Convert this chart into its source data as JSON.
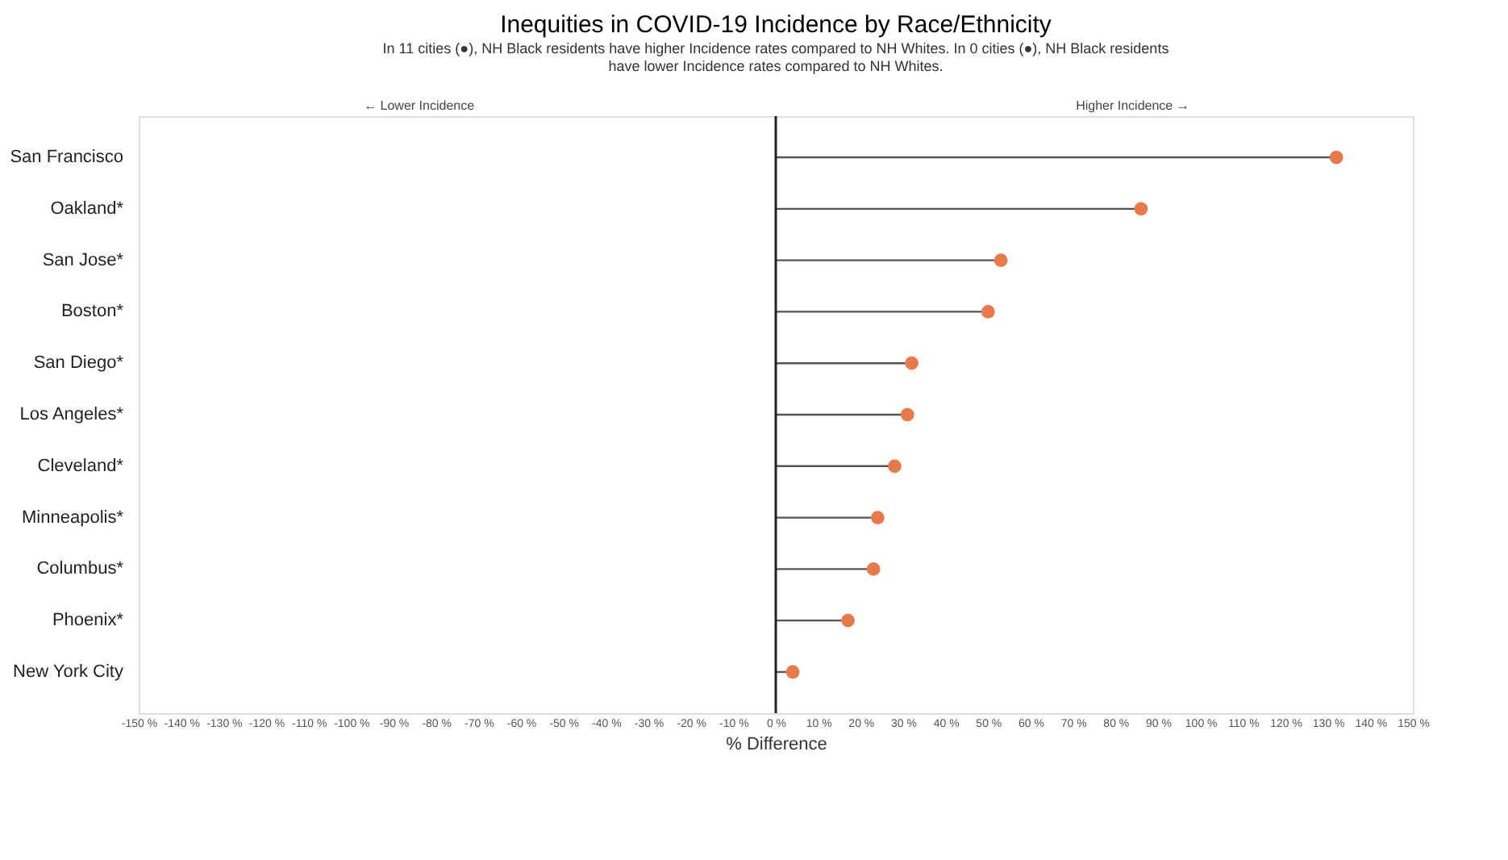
{
  "chart_data": {
    "type": "lollipop",
    "orientation": "horizontal",
    "title": "Inequities in COVID-19 Incidence by Race/Ethnicity",
    "subtitle": "In 11 cities (●), NH Black residents have higher Incidence rates compared to NH Whites. In 0 cities (●), NH Black residents have lower Incidence rates compared to NH Whites.",
    "xlabel": "% Difference",
    "categories": [
      "San Francisco",
      "Oakland*",
      "San Jose*",
      "Boston*",
      "San Diego*",
      "Los Angeles*",
      "Cleveland*",
      "Minneapolis*",
      "Columbus*",
      "Phoenix*",
      "New York City"
    ],
    "series": [
      {
        "color": "#e8794a",
        "values": [
          132,
          86,
          53,
          50,
          32,
          31,
          28,
          24,
          23,
          17,
          4
        ]
      }
    ],
    "xlim": [
      -150,
      150
    ],
    "xticks": [
      {
        "value": -150,
        "label": "-150 %"
      },
      {
        "value": -140,
        "label": "-140 %"
      },
      {
        "value": -130,
        "label": "-130 %"
      },
      {
        "value": -120,
        "label": "-120 %"
      },
      {
        "value": -110,
        "label": "-110 %"
      },
      {
        "value": -100,
        "label": "-100 %"
      },
      {
        "value": -90,
        "label": "-90 %"
      },
      {
        "value": -80,
        "label": "-80 %"
      },
      {
        "value": -70,
        "label": "-70 %"
      },
      {
        "value": -60,
        "label": "-60 %"
      },
      {
        "value": -50,
        "label": "-50 %"
      },
      {
        "value": -40,
        "label": "-40 %"
      },
      {
        "value": -30,
        "label": "-30 %"
      },
      {
        "value": -20,
        "label": "-20 %"
      },
      {
        "value": -10,
        "label": "-10 %"
      },
      {
        "value": 0,
        "label": "0 %"
      },
      {
        "value": 10,
        "label": "10 %"
      },
      {
        "value": 20,
        "label": "20 %"
      },
      {
        "value": 30,
        "label": "30 %"
      },
      {
        "value": 40,
        "label": "40 %"
      },
      {
        "value": 50,
        "label": "50 %"
      },
      {
        "value": 60,
        "label": "60 %"
      },
      {
        "value": 70,
        "label": "70 %"
      },
      {
        "value": 80,
        "label": "80 %"
      },
      {
        "value": 90,
        "label": "90 %"
      },
      {
        "value": 100,
        "label": "100 %"
      },
      {
        "value": 110,
        "label": "110 %"
      },
      {
        "value": 120,
        "label": "120 %"
      },
      {
        "value": 130,
        "label": "130 %"
      },
      {
        "value": 140,
        "label": "140 %"
      },
      {
        "value": 150,
        "label": "150 %"
      }
    ],
    "ref_lines": [
      {
        "axis": "x",
        "value": 0,
        "color": "#222222"
      }
    ],
    "annotations": [
      "← Lower Incidence",
      "Higher Incidence →"
    ],
    "grid": false,
    "legend": false
  }
}
